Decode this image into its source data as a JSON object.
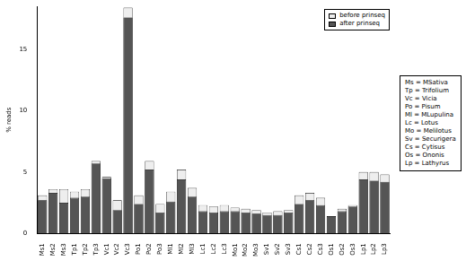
{
  "chart_data": {
    "type": "bar",
    "y_label": "% reads",
    "categories": [
      "Ms1",
      "Ms2",
      "Ms3",
      "Tp1",
      "Tp2",
      "Tp3",
      "Vc1",
      "Vc2",
      "Vc3",
      "Po1",
      "Po2",
      "Po3",
      "Ml1",
      "Ml2",
      "Ml3",
      "Lc1",
      "Lc2",
      "Lc3",
      "Mo1",
      "Mo2",
      "Mo3",
      "Sv1",
      "Sv2",
      "Sv3",
      "Cs1",
      "Cs2",
      "Cs3",
      "Os1",
      "Os2",
      "Os3",
      "Lp1",
      "Lp2",
      "Lp3"
    ],
    "series": [
      {
        "name": "before prinseq",
        "color": "#eeeeee",
        "values": [
          3.1,
          3.6,
          3.6,
          3.4,
          3.6,
          5.9,
          4.6,
          2.7,
          18.4,
          3.1,
          5.9,
          2.4,
          3.4,
          5.2,
          3.7,
          2.3,
          2.2,
          2.3,
          2.1,
          2.0,
          1.9,
          1.7,
          1.8,
          1.9,
          3.1,
          3.3,
          2.9,
          1.4,
          2.0,
          2.3,
          5.0,
          5.0,
          4.8
        ]
      },
      {
        "name": "after prinseq",
        "color": "#555555",
        "values": [
          2.7,
          3.3,
          2.5,
          2.9,
          3.0,
          5.7,
          4.5,
          1.9,
          17.6,
          2.4,
          5.2,
          1.7,
          2.6,
          4.4,
          3.0,
          1.8,
          1.7,
          1.8,
          1.8,
          1.7,
          1.6,
          1.5,
          1.5,
          1.7,
          2.4,
          2.7,
          2.3,
          1.4,
          1.8,
          2.2,
          4.4,
          4.3,
          4.2
        ]
      }
    ],
    "ylim": [
      0,
      18.5
    ],
    "yticks": [
      0,
      5,
      10,
      15
    ],
    "grid": false,
    "legend": "upper right",
    "annotations": [
      "Ms = MSativa",
      "Tp = Trifolium",
      "Vc = Vicia",
      "Po = Pisum",
      "Ml = MLupulina",
      "Lc = Lotus",
      "Mo = Melilotus",
      "Sv = Securigera",
      "Cs = Cytisus",
      "Os = Ononis",
      "Lp = Lathyrus"
    ]
  }
}
